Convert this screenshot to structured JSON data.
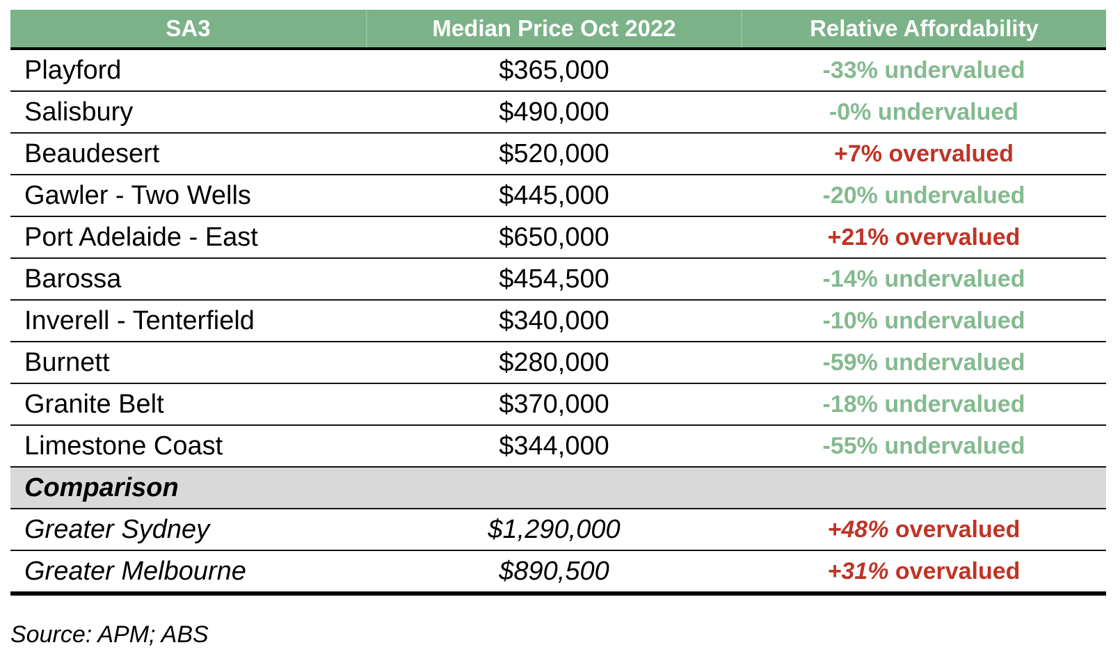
{
  "colors": {
    "header_bg": "#7bb288",
    "header_text": "#ffffff",
    "undervalued_green": "#83ba8f",
    "overvalued_red": "#bf3426",
    "comparison_row_bg": "#d9d9d9",
    "border_black": "#000000"
  },
  "table": {
    "columns": [
      {
        "label": "SA3"
      },
      {
        "label": "Median Price Oct 2022"
      },
      {
        "label": "Relative Affordability"
      }
    ],
    "rows": [
      {
        "region": "Playford",
        "price": "$365,000",
        "pct": "-33%",
        "word": "undervalued",
        "status": "undervalued"
      },
      {
        "region": "Salisbury",
        "price": "$490,000",
        "pct": "-0%",
        "word": "undervalued",
        "status": "undervalued"
      },
      {
        "region": "Beaudesert",
        "price": "$520,000",
        "pct": "+7%",
        "word": "overvalued",
        "status": "overvalued"
      },
      {
        "region": "Gawler - Two Wells",
        "price": "$445,000",
        "pct": "-20%",
        "word": "undervalued",
        "status": "undervalued"
      },
      {
        "region": "Port Adelaide - East",
        "price": "$650,000",
        "pct": "+21%",
        "word": "overvalued",
        "status": "overvalued"
      },
      {
        "region": "Barossa",
        "price": "$454,500",
        "pct": "-14%",
        "word": "undervalued",
        "status": "undervalued"
      },
      {
        "region": "Inverell - Tenterfield",
        "price": "$340,000",
        "pct": "-10%",
        "word": "undervalued",
        "status": "undervalued"
      },
      {
        "region": "Burnett",
        "price": "$280,000",
        "pct": "-59%",
        "word": "undervalued",
        "status": "undervalued"
      },
      {
        "region": "Granite Belt",
        "price": "$370,000",
        "pct": "-18%",
        "word": "undervalued",
        "status": "undervalued"
      },
      {
        "region": "Limestone Coast",
        "price": "$344,000",
        "pct": "-55%",
        "word": "undervalued",
        "status": "undervalued"
      }
    ],
    "section_label": "Comparison",
    "comparison_rows": [
      {
        "region": "Greater Sydney",
        "price": "$1,290,000",
        "pct": "+48%",
        "word": "overvalued",
        "status": "overvalued"
      },
      {
        "region": "Greater Melbourne",
        "price": "$890,500",
        "pct": "+31%",
        "word": "overvalued",
        "status": "overvalued"
      }
    ]
  },
  "source_note": "Source: APM; ABS",
  "chart_data": {
    "type": "table",
    "columns": [
      "SA3",
      "Median Price Oct 2022",
      "Relative Affordability"
    ],
    "rows": [
      [
        "Playford",
        "$365,000",
        "-33% undervalued"
      ],
      [
        "Salisbury",
        "$490,000",
        "-0% undervalued"
      ],
      [
        "Beaudesert",
        "$520,000",
        "+7% overvalued"
      ],
      [
        "Gawler - Two Wells",
        "$445,000",
        "-20% undervalued"
      ],
      [
        "Port Adelaide - East",
        "$650,000",
        "+21% overvalued"
      ],
      [
        "Barossa",
        "$454,500",
        "-14% undervalued"
      ],
      [
        "Inverell - Tenterfield",
        "$340,000",
        "-10% undervalued"
      ],
      [
        "Burnett",
        "$280,000",
        "-59% undervalued"
      ],
      [
        "Granite Belt",
        "$370,000",
        "-18% undervalued"
      ],
      [
        "Limestone Coast",
        "$344,000",
        "-55% undervalued"
      ]
    ],
    "section_rows": [
      [
        "Comparison",
        "",
        ""
      ],
      [
        "Greater Sydney",
        "$1,290,000",
        "+48% overvalued"
      ],
      [
        "Greater Melbourne",
        "$890,500",
        "+31% overvalued"
      ]
    ],
    "annotations": [
      "Source: APM; ABS"
    ],
    "legend": {
      "undervalued_color": "#83ba8f",
      "overvalued_color": "#bf3426"
    }
  }
}
